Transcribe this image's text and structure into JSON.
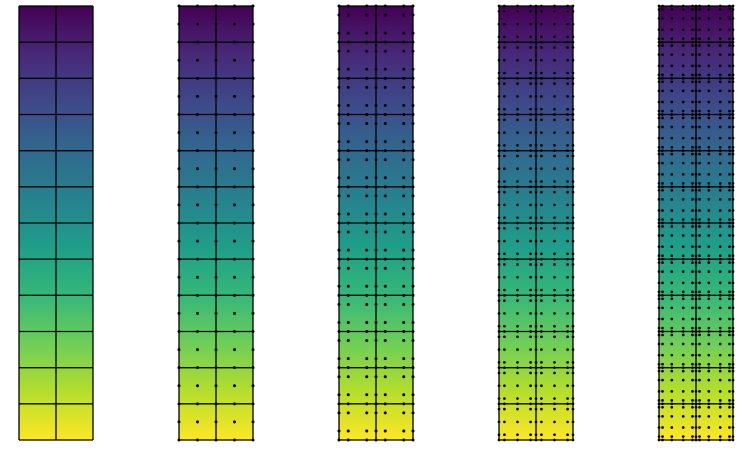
{
  "figure": {
    "colormap": "viridis",
    "viridis_stops": [
      "#fde725",
      "#b5de2b",
      "#6ece58",
      "#35b779",
      "#1f9e89",
      "#26828e",
      "#31688e",
      "#3e4989",
      "#482878",
      "#440154"
    ],
    "grid_line_color": "#000000",
    "node_color": "#000000",
    "mesh": {
      "element_columns": 2,
      "element_rows": 12
    },
    "panels": [
      {
        "id": "p1",
        "polynomial_order": 1
      },
      {
        "id": "p2",
        "polynomial_order": 2
      },
      {
        "id": "p3",
        "polynomial_order": 3
      },
      {
        "id": "p4",
        "polynomial_order": 4
      },
      {
        "id": "p5",
        "polynomial_order": 5
      }
    ]
  }
}
